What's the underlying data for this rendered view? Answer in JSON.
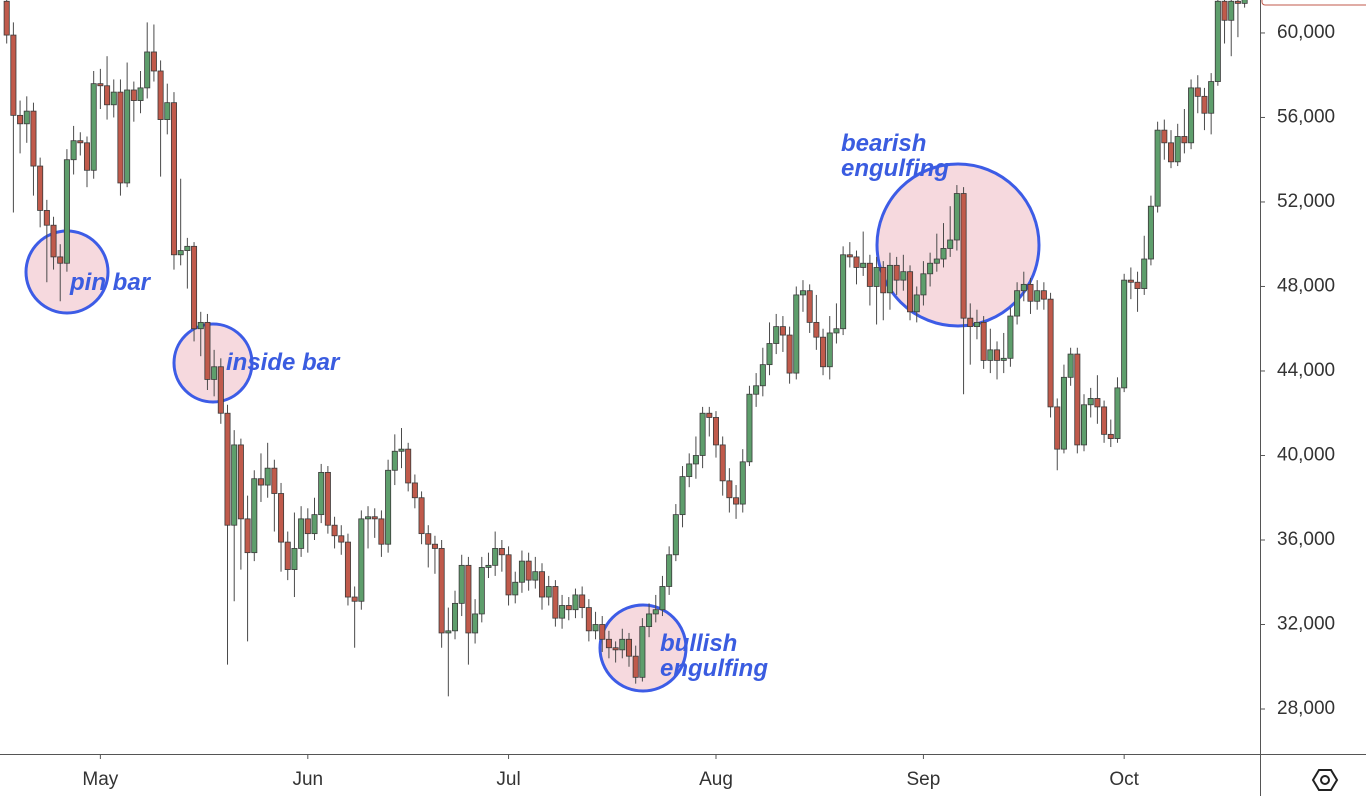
{
  "chart_data": {
    "type": "candlestick",
    "x": [
      1,
      2,
      3,
      4,
      5,
      6,
      7,
      8,
      9,
      10,
      11,
      12,
      13,
      14,
      15,
      16,
      17,
      18,
      19,
      20,
      21,
      22,
      23,
      24,
      25,
      26,
      27,
      28,
      29,
      30,
      31,
      32,
      33,
      34,
      35,
      36,
      37,
      38,
      39,
      40,
      41,
      42,
      43,
      44,
      45,
      46,
      47,
      48,
      49,
      50,
      51,
      52,
      53,
      54,
      55,
      56,
      57,
      58,
      59,
      60,
      61,
      62,
      63,
      64,
      65,
      66,
      67,
      68,
      69,
      70,
      71,
      72,
      73,
      74,
      75,
      76,
      77,
      78,
      79,
      80,
      81,
      82,
      83,
      84,
      85,
      86,
      87,
      88,
      89,
      90,
      91,
      92,
      93,
      94,
      95,
      96,
      97,
      98,
      99,
      100,
      101,
      102,
      103,
      104,
      105,
      106,
      107,
      108,
      109,
      110,
      111,
      112,
      113,
      114,
      115,
      116,
      117,
      118,
      119,
      120,
      121,
      122,
      123,
      124,
      125,
      126,
      127,
      128,
      129,
      130,
      131,
      132,
      133,
      134,
      135,
      136,
      137,
      138,
      139,
      140,
      141,
      142,
      143,
      144,
      145,
      146,
      147,
      148,
      149,
      150,
      151,
      152,
      153,
      154,
      155,
      156,
      157,
      158,
      159,
      160,
      161,
      162,
      163,
      164,
      165,
      166,
      167,
      168,
      169,
      170,
      171,
      172,
      173,
      174,
      175,
      176,
      177,
      178,
      179,
      180,
      181,
      182,
      183,
      184,
      185,
      186
    ],
    "open": [
      61500,
      59900,
      56100,
      55700,
      56300,
      53700,
      51600,
      50900,
      49400,
      49100,
      54000,
      54900,
      54800,
      53500,
      57600,
      57500,
      56600,
      57200,
      52900,
      57300,
      56800,
      57400,
      59100,
      58200,
      55900,
      56700,
      49500,
      49700,
      49900,
      46000,
      46300,
      43600,
      44200,
      42000,
      36700,
      40500,
      37000,
      35400,
      38900,
      38600,
      39400,
      38200,
      35900,
      34600,
      35600,
      37000,
      36300,
      37200,
      39200,
      36700,
      36200,
      35900,
      33300,
      33100,
      37000,
      37100,
      37000,
      35800,
      39300,
      40200,
      40300,
      38700,
      38000,
      36300,
      35800,
      35600,
      31600,
      31700,
      33000,
      34800,
      31600,
      32500,
      34700,
      34800,
      35600,
      35300,
      33400,
      34000,
      35000,
      34100,
      34500,
      33300,
      33800,
      32300,
      32900,
      32700,
      33400,
      32800,
      31700,
      32000,
      31300,
      30900,
      30800,
      31300,
      30500,
      29500,
      31900,
      32500,
      32700,
      33800,
      35300,
      37200,
      39000,
      39600,
      40000,
      42000,
      41800,
      40500,
      38800,
      38000,
      37700,
      39700,
      42900,
      43300,
      44300,
      45300,
      46100,
      45700,
      43900,
      47600,
      47800,
      46300,
      45600,
      44200,
      45800,
      46000,
      49500,
      49400,
      48900,
      49100,
      48000,
      48900,
      47700,
      49000,
      48300,
      48700,
      46800,
      47600,
      48600,
      49100,
      49300,
      49800,
      50200,
      52400,
      46500,
      46100,
      46300,
      44500,
      45000,
      44500,
      44600,
      46600,
      47800,
      48100,
      47300,
      47800,
      47400,
      42300,
      40300,
      43700,
      44800,
      40500,
      42400,
      42700,
      42300,
      41000,
      40800,
      43200,
      48300,
      48200,
      47900,
      49300,
      51800,
      55400,
      54800,
      53900,
      55100,
      54800,
      57400,
      57000,
      56200,
      57700,
      61500,
      60600,
      61500,
      61400
    ],
    "high": [
      61800,
      60500,
      56800,
      57000,
      56700,
      54100,
      52100,
      51300,
      50000,
      54500,
      55600,
      55300,
      55100,
      58200,
      58300,
      58900,
      57800,
      57800,
      58600,
      57700,
      58200,
      60500,
      60400,
      58700,
      57600,
      57200,
      53100,
      50300,
      50100,
      46800,
      46700,
      45000,
      44600,
      42400,
      41200,
      40800,
      38100,
      39300,
      40100,
      40600,
      39800,
      38700,
      36400,
      37300,
      37600,
      37500,
      38000,
      39600,
      39500,
      37100,
      36700,
      36300,
      33800,
      37400,
      37600,
      37500,
      37400,
      39800,
      41000,
      41300,
      40600,
      39100,
      38300,
      36700,
      36200,
      36000,
      32800,
      33600,
      35300,
      35200,
      33200,
      35200,
      35400,
      36400,
      36000,
      35700,
      34500,
      35500,
      35400,
      35200,
      34900,
      34300,
      34100,
      33400,
      33300,
      33700,
      33800,
      33200,
      32600,
      32400,
      31700,
      31200,
      31800,
      31600,
      31000,
      32300,
      33000,
      33400,
      34300,
      35700,
      37700,
      39500,
      40100,
      40900,
      42300,
      42300,
      42100,
      40900,
      39400,
      38600,
      40300,
      43300,
      43900,
      45100,
      46300,
      46700,
      46600,
      46100,
      48000,
      48300,
      48100,
      47600,
      46000,
      46600,
      47200,
      49900,
      50100,
      49700,
      50600,
      49500,
      49400,
      49200,
      49600,
      49400,
      49500,
      49000,
      48000,
      49200,
      49600,
      50500,
      51000,
      51800,
      52800,
      52700,
      47200,
      46900,
      46600,
      46000,
      45400,
      45800,
      47000,
      48200,
      48700,
      48400,
      48300,
      48200,
      47700,
      42700,
      44300,
      45100,
      45100,
      42900,
      43200,
      43800,
      42600,
      41700,
      43700,
      48600,
      48900,
      48700,
      50400,
      52300,
      55800,
      55900,
      55400,
      55700,
      56400,
      57800,
      58000,
      57400,
      58100,
      61700,
      61700,
      61700,
      61700,
      61700
    ],
    "low": [
      59500,
      51500,
      54300,
      54800,
      52300,
      50800,
      48200,
      48800,
      47300,
      48700,
      53300,
      54200,
      52700,
      53100,
      56400,
      55900,
      56000,
      52300,
      52700,
      55800,
      56200,
      56900,
      57700,
      53200,
      55200,
      48800,
      49000,
      47900,
      45400,
      44700,
      43100,
      42800,
      41500,
      30100,
      33100,
      34600,
      31200,
      35000,
      37800,
      38000,
      36400,
      34500,
      34100,
      33300,
      35200,
      35400,
      36000,
      36800,
      36300,
      35600,
      35300,
      32900,
      30900,
      32700,
      35600,
      36100,
      35200,
      35400,
      38600,
      39400,
      38300,
      37500,
      35800,
      34700,
      34400,
      30900,
      28600,
      31300,
      32400,
      30100,
      31100,
      32100,
      34200,
      34300,
      34500,
      32900,
      33000,
      33500,
      33600,
      33700,
      32700,
      32900,
      31900,
      31800,
      32200,
      32300,
      32300,
      31200,
      31300,
      30700,
      30400,
      30200,
      30400,
      30000,
      29200,
      29300,
      31400,
      32100,
      32400,
      33400,
      35000,
      36600,
      38500,
      38900,
      39400,
      40900,
      39900,
      38100,
      37300,
      37000,
      37300,
      39500,
      42300,
      42800,
      43800,
      44800,
      44900,
      43400,
      43600,
      46800,
      45800,
      45000,
      43800,
      43600,
      45300,
      45700,
      48900,
      48100,
      48500,
      47100,
      46200,
      46400,
      46900,
      47600,
      47800,
      46400,
      46300,
      47100,
      48000,
      48700,
      48900,
      49400,
      49700,
      42900,
      44300,
      45500,
      44100,
      43900,
      43600,
      43900,
      44200,
      46200,
      47300,
      46700,
      46900,
      46900,
      41800,
      39300,
      40100,
      43300,
      40100,
      40200,
      41800,
      41500,
      40600,
      40400,
      40600,
      43000,
      47400,
      46800,
      47600,
      49000,
      51500,
      54000,
      53600,
      53700,
      54300,
      54500,
      56200,
      55400,
      55200,
      57500,
      59500,
      58900,
      59800,
      61200
    ],
    "close": [
      59900,
      56100,
      55700,
      56300,
      53700,
      51600,
      50900,
      49400,
      49100,
      54000,
      54900,
      54800,
      53500,
      57600,
      57500,
      56600,
      57200,
      52900,
      57300,
      56800,
      57400,
      59100,
      58200,
      55900,
      56700,
      49500,
      49700,
      49900,
      46000,
      46300,
      43600,
      44200,
      42000,
      36700,
      40500,
      37000,
      35400,
      38900,
      38600,
      39400,
      38200,
      35900,
      34600,
      35600,
      37000,
      36300,
      37200,
      39200,
      36700,
      36200,
      35900,
      33300,
      33100,
      37000,
      37100,
      37000,
      35800,
      39300,
      40200,
      40300,
      38700,
      38000,
      36300,
      35800,
      35600,
      31600,
      31700,
      33000,
      34800,
      31600,
      32500,
      34700,
      34800,
      35600,
      35300,
      33400,
      34000,
      35000,
      34100,
      34500,
      33300,
      33800,
      32300,
      32900,
      32700,
      33400,
      32800,
      31700,
      32000,
      31300,
      30900,
      30800,
      31300,
      30500,
      29500,
      31900,
      32500,
      32700,
      33800,
      35300,
      37200,
      39000,
      39600,
      40000,
      42000,
      41800,
      40500,
      38800,
      38000,
      37700,
      39700,
      42900,
      43300,
      44300,
      45300,
      46100,
      45700,
      43900,
      47600,
      47800,
      46300,
      45600,
      44200,
      45800,
      46000,
      49500,
      49400,
      48900,
      49100,
      48000,
      48900,
      47700,
      49000,
      48300,
      48700,
      46800,
      47600,
      48600,
      49100,
      49300,
      49800,
      50200,
      52400,
      46500,
      46100,
      46300,
      44500,
      45000,
      44500,
      44600,
      46600,
      47800,
      48100,
      47300,
      47800,
      47400,
      42300,
      40300,
      43700,
      44800,
      40500,
      42400,
      42700,
      42300,
      41000,
      40800,
      43200,
      48300,
      48200,
      47900,
      49300,
      51800,
      55400,
      54800,
      53900,
      55100,
      54800,
      57400,
      57000,
      56200,
      57700,
      61500,
      60600,
      61500,
      61400,
      61600
    ],
    "up_color": "#5e9e6c",
    "down_color": "#c05a4b",
    "xlim": [
      0,
      188.3
    ],
    "xticks": [
      {
        "value": 15,
        "label": "May"
      },
      {
        "value": 46,
        "label": "Jun"
      },
      {
        "value": 76,
        "label": "Jul"
      },
      {
        "value": 107,
        "label": "Aug"
      },
      {
        "value": 138,
        "label": "Sep"
      },
      {
        "value": 168,
        "label": "Oct"
      }
    ],
    "ylim": [
      25870,
      61560
    ],
    "yticks": [
      {
        "value": 28000,
        "label": "28,000"
      },
      {
        "value": 32000,
        "label": "32,000"
      },
      {
        "value": 36000,
        "label": "36,000"
      },
      {
        "value": 40000,
        "label": "40,000"
      },
      {
        "value": 44000,
        "label": "44,000"
      },
      {
        "value": 48000,
        "label": "48,000"
      },
      {
        "value": 52000,
        "label": "52,000"
      },
      {
        "value": 56000,
        "label": "56,000"
      },
      {
        "value": 60000,
        "label": "60,000"
      }
    ],
    "annotations": [
      {
        "lines": [
          "pin bar"
        ]
      },
      {
        "lines": [
          "inside bar"
        ]
      },
      {
        "lines": [
          "bullish",
          "engulfing"
        ]
      },
      {
        "lines": [
          "bearish",
          "engulfing"
        ]
      }
    ]
  }
}
